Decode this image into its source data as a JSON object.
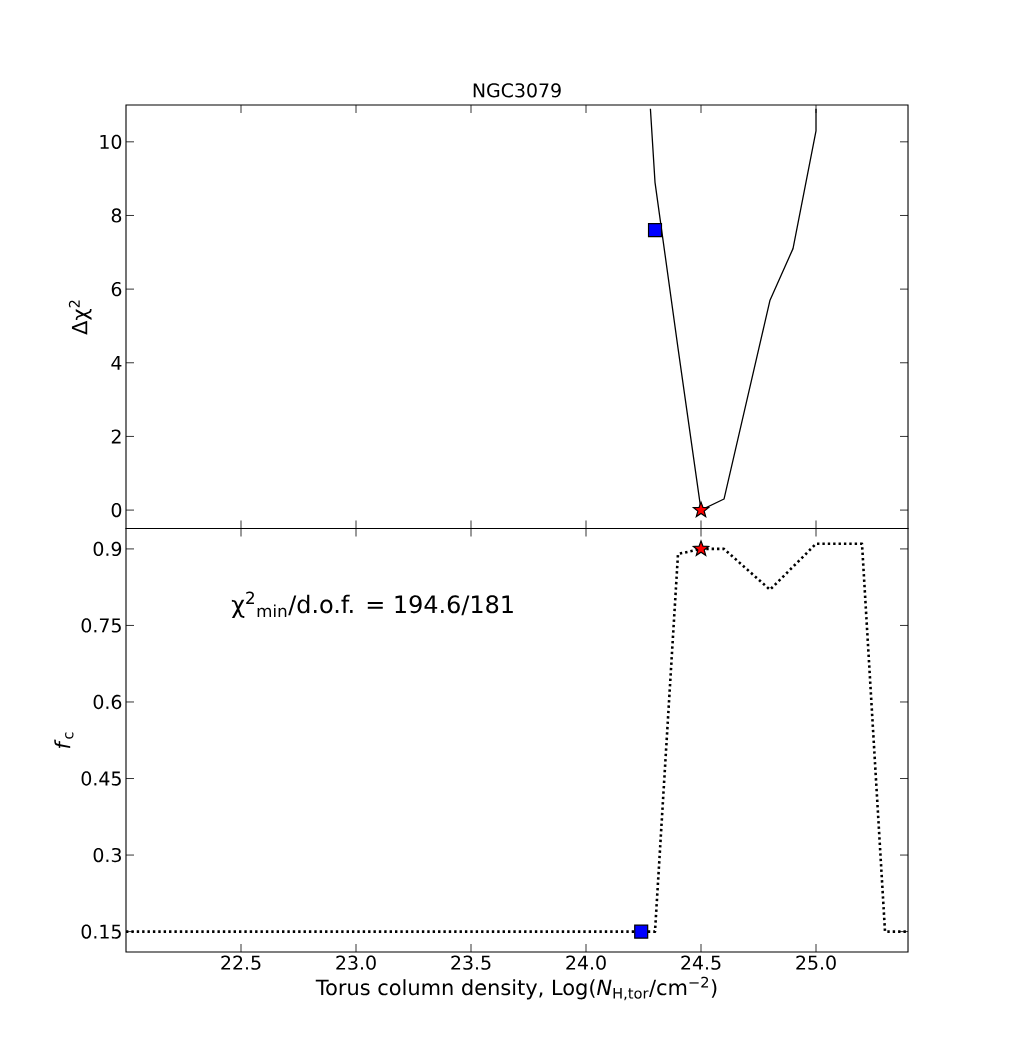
{
  "chart_data": [
    {
      "type": "line",
      "title": "NGC3079",
      "ylabel": "Δχ$^{2}$",
      "xlim": [
        22.0,
        25.4
      ],
      "ylim": [
        -0.5,
        11
      ],
      "xticks": [
        {
          "value": 22.5,
          "label": null
        },
        {
          "value": 23,
          "label": null
        },
        {
          "value": 23.5,
          "label": null
        },
        {
          "value": 24,
          "label": null
        },
        {
          "value": 24.5,
          "label": null
        },
        {
          "value": 25,
          "label": null
        }
      ],
      "yticks": [
        0,
        2,
        4,
        6,
        8,
        10
      ],
      "tick_labels": "y",
      "series": [
        {
          "color": "#000000",
          "marker": "none",
          "line_style": "solid",
          "x": [
            24.28,
            24.3,
            24.4,
            24.5,
            24.6,
            24.8,
            24.9,
            25.0,
            25.0
          ],
          "values": [
            10.9,
            8.9,
            4.4,
            0,
            0.3,
            5.7,
            7.1,
            10.3,
            10.9
          ]
        },
        {
          "type": "scatter",
          "color": "#0000ff",
          "marker": "square",
          "x": [
            24.3
          ],
          "values": [
            7.6
          ]
        },
        {
          "type": "scatter",
          "color": "#ff0000",
          "marker": "star",
          "x": [
            24.5
          ],
          "values": [
            0
          ]
        }
      ]
    },
    {
      "type": "line",
      "xlabel": "Torus column density, Log(*N*$_{H,tor}$/cm$^{−2}$)",
      "ylabel": "*f*$_{c}$",
      "xlim": [
        22.0,
        25.4
      ],
      "ylim": [
        0.11,
        0.94
      ],
      "xticks": [
        22.5,
        {
          "value": 23,
          "label": "23.0"
        },
        23.5,
        {
          "value": 24,
          "label": "24.0"
        },
        24.5,
        {
          "value": 25,
          "label": "25.0"
        }
      ],
      "yticks": [
        0.15,
        0.3,
        0.45,
        0.6,
        0.75,
        0.9
      ],
      "annotations": [
        "χ$^{2}$$_{min}$/d.o.f. = 194.6/181"
      ],
      "series": [
        {
          "color": "#000000",
          "marker": "none",
          "line_style": "dotted",
          "x": [
            22.0,
            24.3,
            24.4,
            24.5,
            24.6,
            24.8,
            25.0,
            25.2,
            25.3,
            25.4
          ],
          "values": [
            0.15,
            0.15,
            0.89,
            0.9,
            0.9,
            0.82,
            0.91,
            0.91,
            0.15,
            0.15
          ]
        },
        {
          "type": "scatter",
          "color": "#0000ff",
          "marker": "square",
          "x": [
            24.24
          ],
          "values": [
            0.15
          ]
        },
        {
          "type": "scatter",
          "color": "#ff0000",
          "marker": "star",
          "x": [
            24.5
          ],
          "values": [
            0.9
          ]
        }
      ]
    }
  ]
}
